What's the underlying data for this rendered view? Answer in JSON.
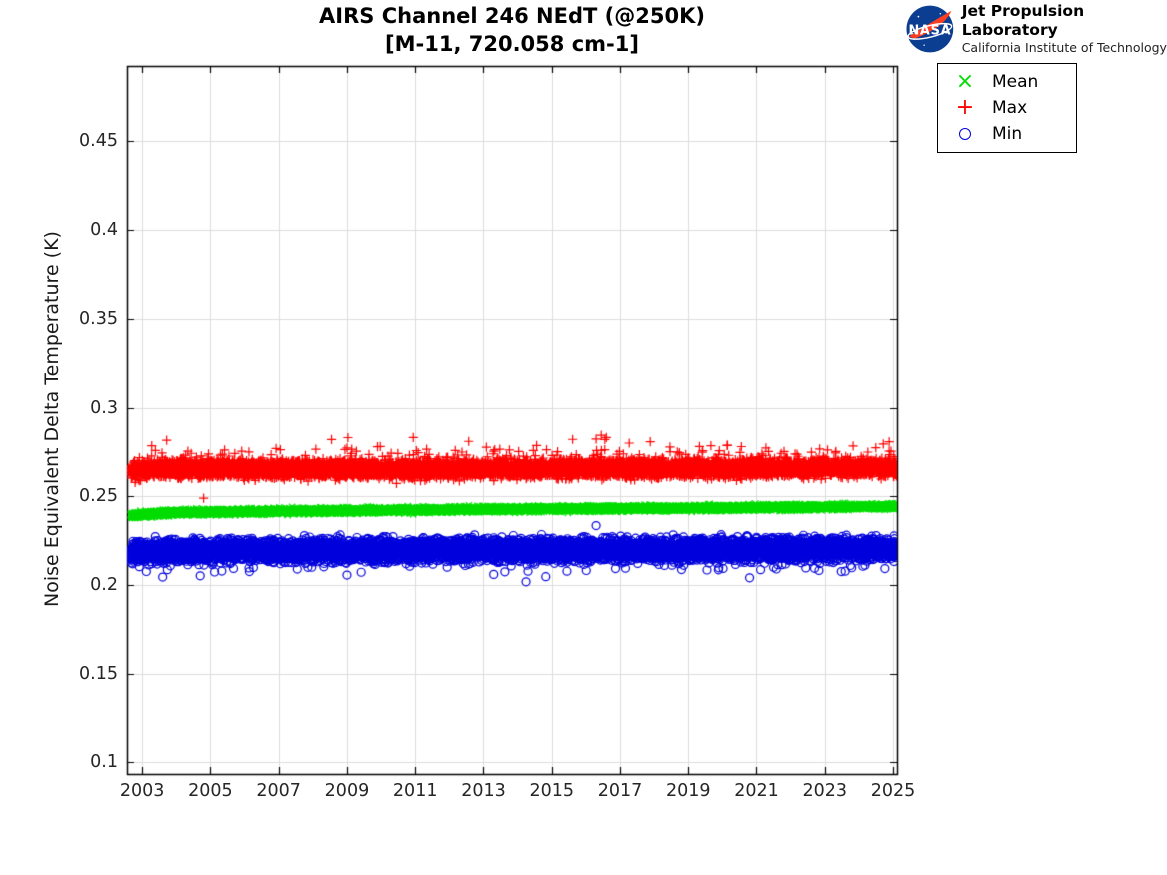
{
  "branding": {
    "org": "NASA",
    "line1": "Jet Propulsion Laboratory",
    "line2": "California Institute of Technology",
    "logo_blue": "#0B3D91",
    "logo_red": "#FC3D21"
  },
  "chart_data": {
    "type": "scatter",
    "title": "AIRS Channel 246 NEdT (@250K)",
    "subtitle": "[M-11, 720.058 cm-1]",
    "xlabel": "",
    "ylabel": "Noise Equivalent Delta Temperature (K)",
    "xlim": [
      2002.555,
      2025.117
    ],
    "ylim": [
      0.0935,
      0.4925
    ],
    "xticks": [
      2003,
      2005,
      2007,
      2009,
      2011,
      2013,
      2015,
      2017,
      2019,
      2021,
      2023,
      2025
    ],
    "xtick_labels": [
      "2003",
      "2005",
      "2007",
      "2009",
      "2011",
      "2013",
      "2015",
      "2017",
      "2019",
      "2021",
      "2023",
      "2025"
    ],
    "yticks": [
      0.1,
      0.15,
      0.2,
      0.25,
      0.3,
      0.35,
      0.4,
      0.45
    ],
    "ytick_labels": [
      "0.1",
      "0.15",
      "0.2",
      "0.25",
      "0.3",
      "0.35",
      "0.4",
      "0.45"
    ],
    "grid": true,
    "grid_color": "#dcdcdc",
    "axis_color": "#000000",
    "legend": {
      "position": "outside-top-right",
      "items": [
        {
          "label": "Mean",
          "marker": "x",
          "color": "#00dd00"
        },
        {
          "label": "Max",
          "marker": "+",
          "color": "#ff0000"
        },
        {
          "label": "Min",
          "marker": "o",
          "color": "#0000dd"
        }
      ]
    },
    "sampling": {
      "x_start": 2002.67,
      "x_end": 2025.1,
      "points_per_series": 8200,
      "seed": 42
    },
    "series": [
      {
        "name": "Mean",
        "marker": "x",
        "color": "#00dd00",
        "trend": [
          [
            2002.67,
            0.2392
          ],
          [
            2003.2,
            0.24
          ],
          [
            2004,
            0.2408
          ],
          [
            2006,
            0.2414
          ],
          [
            2009,
            0.2419
          ],
          [
            2012,
            0.2425
          ],
          [
            2015,
            0.2429
          ],
          [
            2018,
            0.2433
          ],
          [
            2021,
            0.2437
          ],
          [
            2025.1,
            0.2443
          ]
        ],
        "spread": 0.0026,
        "spike_rate": 0.002,
        "spike_scale": 0.002,
        "spike_sign": 1,
        "spike2_rate": 0,
        "spike2_scale": 0,
        "spike2_sign": 1,
        "big_rate": 0,
        "big_scale": 0,
        "notable_outliers": []
      },
      {
        "name": "Max",
        "marker": "+",
        "color": "#ff0000",
        "trend": [
          [
            2002.67,
            0.2648
          ],
          [
            2004,
            0.2654
          ],
          [
            2008,
            0.2653
          ],
          [
            2012,
            0.2652
          ],
          [
            2016,
            0.2656
          ],
          [
            2020,
            0.2657
          ],
          [
            2025.1,
            0.2662
          ]
        ],
        "spread": 0.0082,
        "spike_rate": 0.05,
        "spike_scale": 0.011,
        "spike_sign": 1,
        "spike2_rate": 0,
        "spike2_scale": 0,
        "spike2_sign": 1,
        "big_rate": 0.0025,
        "big_scale": 0.017,
        "notable_outliers": [
          [
            2004.8,
            0.249
          ],
          [
            2016.45,
            0.2845
          ],
          [
            2016.6,
            0.2832
          ],
          [
            2016.3,
            0.2824
          ]
        ]
      },
      {
        "name": "Min",
        "marker": "o",
        "color": "#0000dd",
        "trend": [
          [
            2002.67,
            0.2185
          ],
          [
            2004,
            0.2192
          ],
          [
            2010,
            0.2196
          ],
          [
            2016,
            0.2198
          ],
          [
            2020,
            0.22
          ],
          [
            2025.1,
            0.2203
          ]
        ],
        "spread": 0.01,
        "spike_rate": 0.04,
        "spike_scale": 0.009,
        "spike_sign": -1,
        "spike2_rate": 0.004,
        "spike2_scale": 0.0075,
        "spike2_sign": 1,
        "big_rate": 0.003,
        "big_scale": 0.014,
        "notable_outliers": [
          [
            2003.6,
            0.2045
          ],
          [
            2004.7,
            0.2052
          ],
          [
            2009.0,
            0.2056
          ],
          [
            2013.3,
            0.206
          ],
          [
            2016.3,
            0.2335
          ],
          [
            2021.5,
            0.21
          ]
        ]
      }
    ]
  }
}
